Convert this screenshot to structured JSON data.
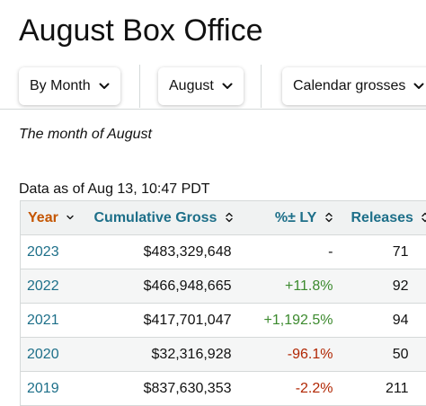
{
  "page": {
    "title": "August Box Office",
    "subtitle": "The month of August",
    "as_of": "Data as of Aug 13, 10:47 PDT"
  },
  "filters": [
    {
      "label": "By Month"
    },
    {
      "label": "August"
    },
    {
      "label": "Calendar grosses"
    }
  ],
  "table": {
    "headers": {
      "year": "Year",
      "gross": "Cumulative Gross",
      "ly": "%± LY",
      "releases": "Releases"
    },
    "rows": [
      {
        "year": "2023",
        "gross": "$483,329,648",
        "ly": "-",
        "ly_trend": "neutral",
        "releases": "71"
      },
      {
        "year": "2022",
        "gross": "$466,948,665",
        "ly": "+11.8%",
        "ly_trend": "pos",
        "releases": "92"
      },
      {
        "year": "2021",
        "gross": "$417,701,047",
        "ly": "+1,192.5%",
        "ly_trend": "pos",
        "releases": "94"
      },
      {
        "year": "2020",
        "gross": "$32,316,928",
        "ly": "-96.1%",
        "ly_trend": "neg",
        "releases": "50"
      },
      {
        "year": "2019",
        "gross": "$837,630,353",
        "ly": "-2.2%",
        "ly_trend": "neg",
        "releases": "211"
      }
    ]
  },
  "colors": {
    "link": "#1d6f89",
    "sorted_header": "#c45500",
    "positive": "#3c8a2e",
    "negative": "#b12704"
  },
  "icons": {
    "dropdown": "chevron-down-icon",
    "sortable": "sort-up-down-icon",
    "sorted_desc": "sort-desc-icon"
  }
}
